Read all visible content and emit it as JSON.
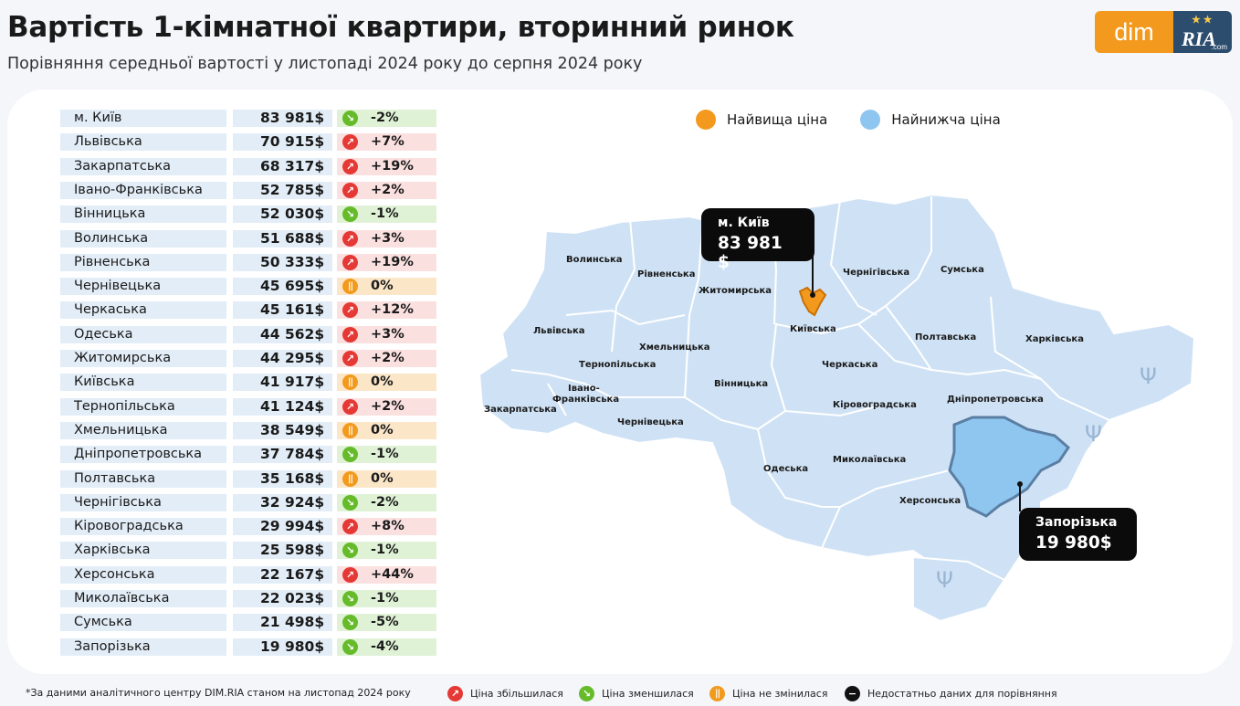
{
  "header": {
    "title": "Вартість 1-кімнатної квартири, вторинний ринок",
    "subtitle": "Порівняння середньої вартості у листопаді 2024 року до серпня 2024 року"
  },
  "logo": {
    "dim": "dim",
    "ria": "RIA",
    "ria_com": ".com"
  },
  "colors": {
    "highest": "#f39a1e",
    "lowest": "#8fc6f0",
    "up": "#e53935",
    "down": "#66bb2a",
    "same": "#f29a1e",
    "na": "#111111",
    "map_fill": "#cfe2f5"
  },
  "table": [
    {
      "name": "м. Київ",
      "price": "83 981$",
      "change": "-2%",
      "trend": "down"
    },
    {
      "name": "Львівська",
      "price": "70 915$",
      "change": "+7%",
      "trend": "up"
    },
    {
      "name": "Закарпатська",
      "price": "68 317$",
      "change": "+19%",
      "trend": "up"
    },
    {
      "name": "Івано-Франківська",
      "price": "52 785$",
      "change": "+2%",
      "trend": "up"
    },
    {
      "name": "Вінницька",
      "price": "52 030$",
      "change": "-1%",
      "trend": "down"
    },
    {
      "name": "Волинська",
      "price": "51 688$",
      "change": "+3%",
      "trend": "up"
    },
    {
      "name": "Рівненська",
      "price": "50 333$",
      "change": "+19%",
      "trend": "up"
    },
    {
      "name": "Чернівецька",
      "price": "45 695$",
      "change": "0%",
      "trend": "same"
    },
    {
      "name": "Черкаська",
      "price": "45 161$",
      "change": "+12%",
      "trend": "up"
    },
    {
      "name": "Одеська",
      "price": "44 562$",
      "change": "+3%",
      "trend": "up"
    },
    {
      "name": "Житомирська",
      "price": "44 295$",
      "change": "+2%",
      "trend": "up"
    },
    {
      "name": "Київська",
      "price": "41 917$",
      "change": "0%",
      "trend": "same"
    },
    {
      "name": "Тернопільська",
      "price": "41 124$",
      "change": "+2%",
      "trend": "up"
    },
    {
      "name": "Хмельницька",
      "price": "38 549$",
      "change": "0%",
      "trend": "same"
    },
    {
      "name": "Дніпропетровська",
      "price": "37 784$",
      "change": "-1%",
      "trend": "down"
    },
    {
      "name": "Полтавська",
      "price": "35 168$",
      "change": "0%",
      "trend": "same"
    },
    {
      "name": "Чернігівська",
      "price": "32 924$",
      "change": "-2%",
      "trend": "down"
    },
    {
      "name": "Кіровоградська",
      "price": "29 994$",
      "change": "+8%",
      "trend": "up"
    },
    {
      "name": "Харківська",
      "price": "25 598$",
      "change": "-1%",
      "trend": "down"
    },
    {
      "name": "Херсонська",
      "price": "22 167$",
      "change": "+44%",
      "trend": "up"
    },
    {
      "name": "Миколаївська",
      "price": "22 023$",
      "change": "-1%",
      "trend": "down"
    },
    {
      "name": "Сумська",
      "price": "21 498$",
      "change": "-5%",
      "trend": "down"
    },
    {
      "name": "Запорізька",
      "price": "19 980$",
      "change": "-4%",
      "trend": "down"
    }
  ],
  "legend": {
    "highest": "Найвища ціна",
    "lowest": "Найнижча ціна"
  },
  "map_labels": {
    "volynska": "Волинська",
    "rivnenska": "Рівненська",
    "zhytomyrska": "Житомирська",
    "chernihivska": "Чернігівська",
    "sumska": "Сумська",
    "lvivska": "Львівська",
    "kyivska": "Київська",
    "poltavska": "Полтавська",
    "kharkivska": "Харківська",
    "khmelnytska": "Хмельницька",
    "ternopilska": "Тернопільська",
    "cherkaska": "Черкаська",
    "ivano1": "Івано-",
    "ivano2": "Франківська",
    "vinnytska": "Вінницька",
    "kirovohradska": "Кіровоградська",
    "dnipropetrovska": "Дніпропетровська",
    "zakarpatska": "Закарпатська",
    "chernivetska": "Чернівецька",
    "odeska": "Одеська",
    "mykolaivska": "Миколаївська",
    "khersonska": "Херсонська"
  },
  "callouts": {
    "kyiv": {
      "name": "м. Київ",
      "price": "83 981 $"
    },
    "zaporizka": {
      "name": "Запорізька",
      "price": "19 980$"
    }
  },
  "footer": {
    "source": "*За даними аналітичного центру DIM.RIA станом на листопад 2024 року",
    "up": "Ціна збільшилася",
    "down": "Ціна зменшилася",
    "same": "Ціна не змінилася",
    "na": "Недостатньо даних для порівняння"
  }
}
